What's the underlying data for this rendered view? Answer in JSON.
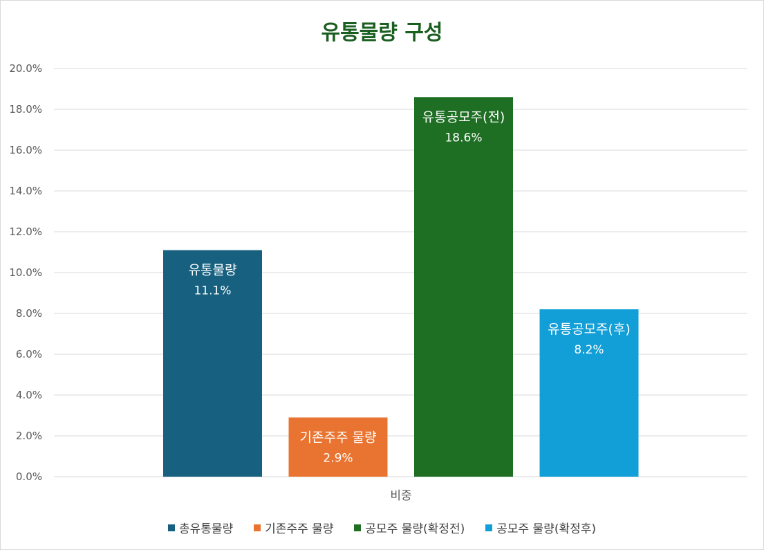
{
  "chart_data": {
    "type": "bar",
    "title": "유통물량 구성",
    "xlabel": "비중",
    "ylabel": "",
    "ylim": [
      0,
      20
    ],
    "yticks": [
      "0.0%",
      "2.0%",
      "4.0%",
      "6.0%",
      "8.0%",
      "10.0%",
      "12.0%",
      "14.0%",
      "16.0%",
      "18.0%",
      "20.0%"
    ],
    "grid": true,
    "legend_position": "bottom",
    "series": [
      {
        "name": "총유통물량",
        "value": 11.1,
        "label": "유통물량",
        "value_label": "11.1%",
        "color": "#17607f"
      },
      {
        "name": "기존주주 물량",
        "value": 2.9,
        "label": "기존주주 물량",
        "value_label": "2.9%",
        "color": "#e97431"
      },
      {
        "name": "공모주 물량(확정전)",
        "value": 18.6,
        "label": "유통공모주(전)",
        "value_label": "18.6%",
        "color": "#1e6e24"
      },
      {
        "name": "공모주 물량(확정후)",
        "value": 8.2,
        "label": "유통공모주(후)",
        "value_label": "8.2%",
        "color": "#129ed6"
      }
    ]
  }
}
